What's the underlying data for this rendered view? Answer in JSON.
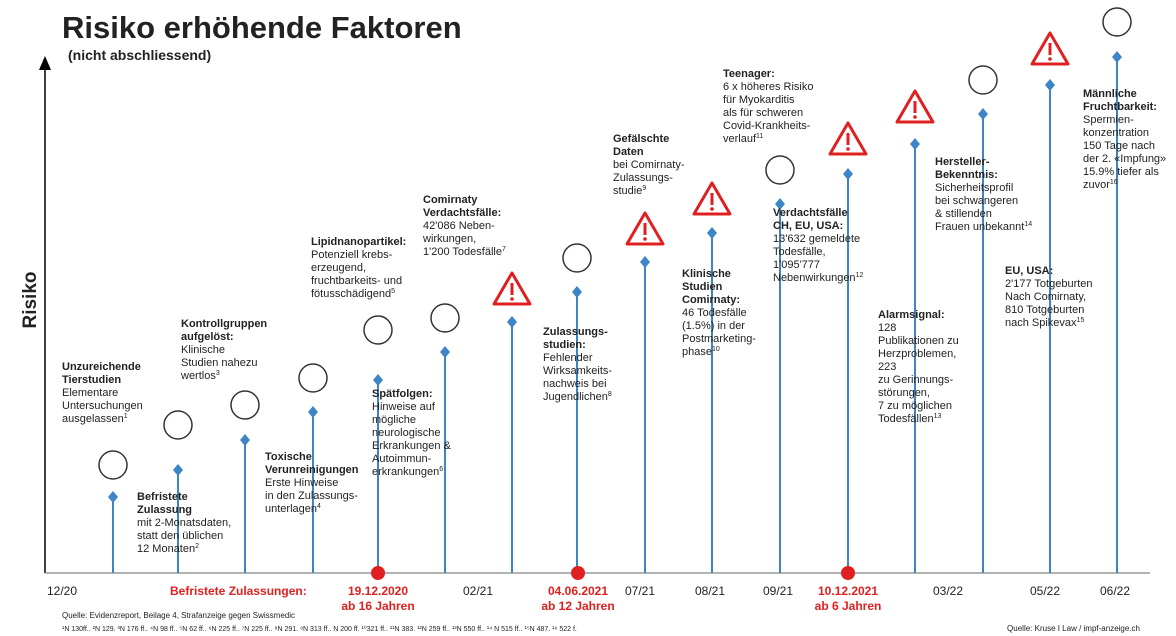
{
  "header": {
    "title": "Risiko erhöhende Faktoren",
    "subtitle": "(nicht abschliessend)"
  },
  "y_axis_label": "Risiko",
  "items": [
    {
      "heading": [
        "Unzureichende",
        "Tierstudien"
      ],
      "text": [
        "Elementare",
        "Untersuchungen",
        "ausgelassen"
      ],
      "note": "1"
    },
    {
      "heading": [
        "Befristete",
        "Zulassung"
      ],
      "text": [
        "mit 2-Monatsdaten,",
        "statt den üblichen",
        "12 Monaten"
      ],
      "note": "2"
    },
    {
      "heading": [
        "Kontrollgruppen",
        "aufgelöst:"
      ],
      "text": [
        "Klinische",
        "Studien nahezu",
        "wertlos"
      ],
      "note": "3"
    },
    {
      "heading": [
        "Toxische",
        "Verunreinigungen"
      ],
      "text": [
        "Erste Hinweise",
        "in den Zulassungs-",
        "unterlagen"
      ],
      "note": "4"
    },
    {
      "heading": [
        "Lipidnanopartikel:"
      ],
      "text": [
        "Potenziell krebs-",
        "erzeugend,",
        "fruchtbarkeits- und",
        "fötusschädigend"
      ],
      "note": "5"
    },
    {
      "heading": [
        "Spätfolgen:"
      ],
      "text": [
        "Hinweise auf",
        "mögliche",
        "neurologische",
        "Erkrankungen &",
        "Autoimmun-",
        "erkrankungen"
      ],
      "note": "6"
    },
    {
      "heading": [
        "Comirnaty",
        "Verdachtsfälle:"
      ],
      "text": [
        "42'086 Neben-",
        "wirkungen,",
        "1'200 Todesfälle"
      ],
      "note": "7"
    },
    {
      "heading": [
        "Zulassungs-",
        "studien:"
      ],
      "text": [
        "Fehlender",
        "Wirksamkeits-",
        "nachweis bei",
        "Jugendlichen"
      ],
      "note": "8"
    },
    {
      "heading": [
        "Gefälschte",
        "Daten"
      ],
      "text": [
        "bei Comirnaty-",
        "Zulassungs-",
        "studie"
      ],
      "note": "9"
    },
    {
      "heading": [
        "Klinische",
        "Studien",
        "Comirnaty:"
      ],
      "text": [
        "46 Todesfälle",
        "(1.5%) in der",
        "Postmarketing-",
        "phase"
      ],
      "note": "10"
    },
    {
      "heading": [
        "Teenager:"
      ],
      "text": [
        "6 x höheres Risiko",
        "für Myokarditis",
        "als für schweren",
        "Covid-Krankheits-",
        "verlauf"
      ],
      "note": "11"
    },
    {
      "heading": [
        "Verdachtsfälle",
        "CH, EU, USA:"
      ],
      "text": [
        "13'632 gemeldete",
        "Todesfälle,",
        "1'095'777",
        "Nebenwirkungen"
      ],
      "note": "12"
    },
    {
      "heading": [
        "Alarmsignal:"
      ],
      "text": [
        "128",
        "Publikationen zu",
        "Herzproblemen,",
        "223",
        "zu Gerinnungs-",
        "störungen,",
        "7 zu möglichen",
        "Todesfällen"
      ],
      "note": "13"
    },
    {
      "heading": [
        "Hersteller-",
        "Bekenntnis:"
      ],
      "text": [
        "Sicherheitsprofil",
        "bei schwangeren",
        "& stillenden",
        "Frauen unbekannt"
      ],
      "note": "14"
    },
    {
      "heading": [
        "EU, USA:"
      ],
      "text": [
        "2'177 Totgeburten",
        "Nach Comirnaty,",
        "810 Totgeburten",
        "nach Spikevax"
      ],
      "note": "15"
    },
    {
      "heading": [
        "Männliche",
        "Fruchtbarkeit:"
      ],
      "text": [
        "Spermien-",
        "konzentration",
        "150 Tage nach",
        "der 2. «Impfung»",
        "15.9% tiefer als",
        "zuvor"
      ],
      "note": "16"
    }
  ],
  "timeline": {
    "labels": [
      "12/20",
      "02/21",
      "07/21",
      "08/21",
      "09/21",
      "03/22",
      "05/22",
      "06/22"
    ],
    "approvals_label": "Befristete Zulassungen:",
    "approvals": [
      {
        "date": "19.12.2020",
        "age": "ab 16 Jahren"
      },
      {
        "date": "04.06.2021",
        "age": "ab 12 Jahren"
      },
      {
        "date": "10.12.2021",
        "age": "ab 6 Jahren"
      }
    ]
  },
  "footer": {
    "source_left": "Quelle: Evidenzreport, Beilage 4, Strafanzeige gegen Swissmedic",
    "footnotes": "¹N 130ff.. ²N 129. ³N 176 ff.. ⁴N 98 ff.. ⁵N 62 ff.. ⁶N 225 ff.. ⁷N 225 ff.. ⁸N 291. ⁹N 313 ff.. N 200 ff. ¹⁰321 ff.. ¹¹N 383. ¹²N 259 ff.. ¹³N 550 ff.. ¹⁴ N 515 ff.. ¹⁵N 487. ¹⁶ 522 f.",
    "source_right": "Quelle: Kruse I Law / impf-anzeige.ch"
  }
}
